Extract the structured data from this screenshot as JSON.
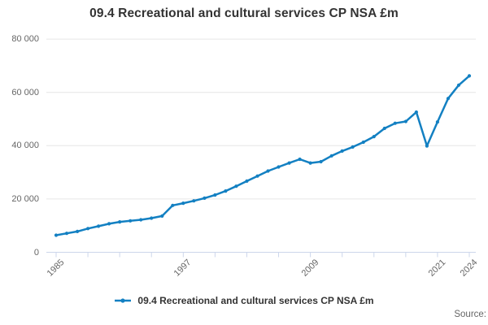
{
  "title": "09.4 Recreational and cultural services CP NSA £m",
  "legend": {
    "label": "09.4 Recreational and cultural services CP NSA £m"
  },
  "source_label": "Source:",
  "colors": {
    "line": "#1380C2",
    "grid": "#e6e6e6",
    "axis": "#ccd6eb",
    "tick_label": "#666666",
    "title_text": "#333333"
  },
  "chart_data": {
    "type": "line",
    "title": "09.4 Recreational and cultural services CP NSA £m",
    "xlabel": "",
    "ylabel": "",
    "x": [
      1985,
      1986,
      1987,
      1988,
      1989,
      1990,
      1991,
      1992,
      1993,
      1994,
      1995,
      1996,
      1997,
      1998,
      1999,
      2000,
      2001,
      2002,
      2003,
      2004,
      2005,
      2006,
      2007,
      2008,
      2009,
      2010,
      2011,
      2012,
      2013,
      2014,
      2015,
      2016,
      2017,
      2018,
      2019,
      2020,
      2021,
      2022,
      2023,
      2024
    ],
    "series": [
      {
        "name": "09.4 Recreational and cultural services CP NSA £m",
        "values": [
          6400,
          7100,
          7800,
          8900,
          9800,
          10700,
          11400,
          11800,
          12200,
          12800,
          13600,
          17600,
          18400,
          19300,
          20300,
          21500,
          23000,
          24800,
          26700,
          28600,
          30500,
          32000,
          33500,
          34900,
          33500,
          34000,
          36200,
          38000,
          39500,
          41300,
          43400,
          46500,
          48400,
          49100,
          52600,
          39900,
          48900,
          57700,
          62700,
          66200
        ]
      }
    ],
    "ylim": [
      0,
      80000
    ],
    "yticks": [
      {
        "value": 0,
        "label": "0"
      },
      {
        "value": 20000,
        "label": "20 000"
      },
      {
        "value": 40000,
        "label": "40 000"
      },
      {
        "value": 60000,
        "label": "60 000"
      },
      {
        "value": 80000,
        "label": "80 000"
      }
    ],
    "xtick_start": 1985,
    "xtick_end": 2024,
    "xtick_interval_years": 3,
    "xtick_labeled_years": [
      1985,
      1997,
      2009,
      2021,
      2024
    ],
    "grid": "horizontal",
    "markers": true,
    "legend_position": "bottom-center"
  }
}
